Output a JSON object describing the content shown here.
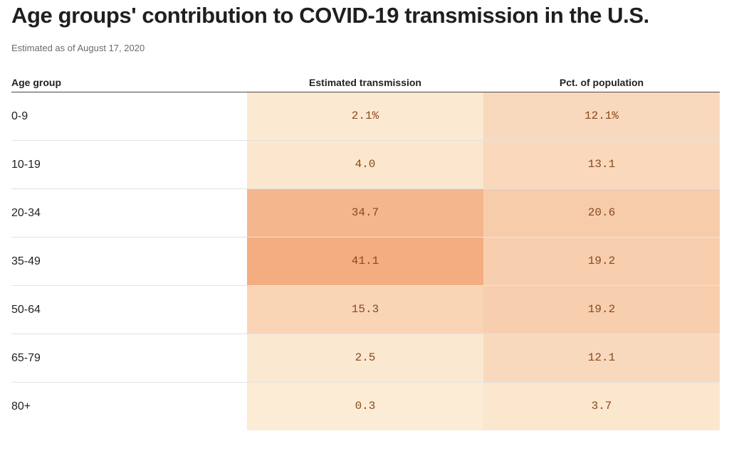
{
  "title": "Age groups' contribution to COVID-19 transmission in the U.S.",
  "subtitle": "Estimated as of August 17, 2020",
  "chart_data": {
    "type": "table",
    "columns": [
      "Age group",
      "Estimated transmission",
      "Pct. of population"
    ],
    "rows": [
      {
        "age": "0-9",
        "transmission": "2.1%",
        "population": "12.1%",
        "transmission_value": 2.1,
        "population_value": 12.1
      },
      {
        "age": "10-19",
        "transmission": "4.0",
        "population": "13.1",
        "transmission_value": 4.0,
        "population_value": 13.1
      },
      {
        "age": "20-34",
        "transmission": "34.7",
        "population": "20.6",
        "transmission_value": 34.7,
        "population_value": 20.6
      },
      {
        "age": "35-49",
        "transmission": "41.1",
        "population": "19.2",
        "transmission_value": 41.1,
        "population_value": 19.2
      },
      {
        "age": "50-64",
        "transmission": "15.3",
        "population": "19.2",
        "transmission_value": 15.3,
        "population_value": 19.2
      },
      {
        "age": "65-79",
        "transmission": "2.5",
        "population": "12.1",
        "transmission_value": 2.5,
        "population_value": 12.1
      },
      {
        "age": "80+",
        "transmission": "0.3",
        "population": "3.7",
        "transmission_value": 0.3,
        "population_value": 3.7
      }
    ],
    "heat_colors": {
      "low": "#fcecd6",
      "high": "#f3ad80"
    },
    "text_color": "#8a4a1c"
  }
}
